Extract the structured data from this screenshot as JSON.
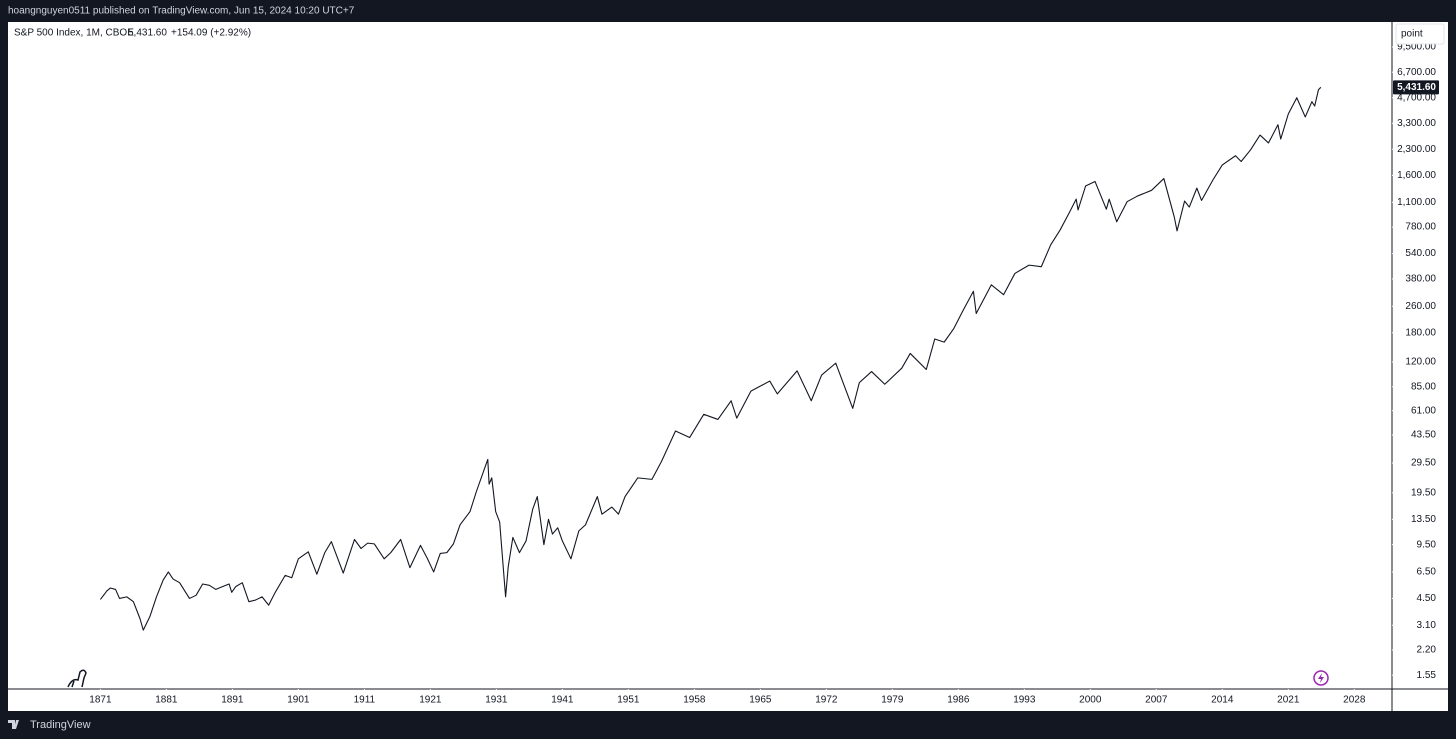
{
  "header": {
    "byline": "hoangnguyen0511 published on TradingView.com, Jun 15, 2024 10:20 UTC+7"
  },
  "footer": {
    "brand": "TradingView"
  },
  "toolbar": {
    "scale_button": "point"
  },
  "chart_data": {
    "type": "line",
    "log_scale": true,
    "grid": false,
    "price_label": {
      "value": 5431.6,
      "label": "5,431.60"
    },
    "change": "+154.09 (+2.92%)",
    "xlim": [
      1857,
      2032
    ],
    "xticks": [
      1871,
      1881,
      1891,
      1901,
      1911,
      1921,
      1931,
      1941,
      1951,
      1958,
      1965,
      1972,
      1979,
      1986,
      1993,
      2000,
      2007,
      2014,
      2021,
      2028
    ],
    "ylim": [
      1.28,
      13450
    ],
    "yticks": [
      1.55,
      {
        "value": 2.2,
        "label": "2.20"
      },
      {
        "value": 3.1,
        "label": "3.10"
      },
      {
        "value": 4.5,
        "label": "4.50"
      },
      {
        "value": 6.5,
        "label": "6.50"
      },
      {
        "value": 9.5,
        "label": "9.50"
      },
      {
        "value": 13.5,
        "label": "13.50"
      },
      {
        "value": 19.5,
        "label": "19.50"
      },
      {
        "value": 29.5,
        "label": "29.50"
      },
      {
        "value": 43.5,
        "label": "43.50"
      },
      {
        "value": 61,
        "label": "61.00"
      },
      {
        "value": 85,
        "label": "85.00"
      },
      {
        "value": 120,
        "label": "120.00"
      },
      {
        "value": 180,
        "label": "180.00"
      },
      {
        "value": 260,
        "label": "260.00"
      },
      {
        "value": 380,
        "label": "380.00"
      },
      {
        "value": 540,
        "label": "540.00"
      },
      {
        "value": 780,
        "label": "780.00"
      },
      {
        "value": 1100,
        "label": "1,100.00"
      },
      {
        "value": 1600,
        "label": "1,600.00"
      },
      {
        "value": 2300,
        "label": "2,300.00"
      },
      {
        "value": 3300,
        "label": "3,300.00"
      },
      {
        "value": 4700,
        "label": "4,700.00"
      },
      {
        "value": 6700,
        "label": "6,700.00"
      },
      {
        "value": 9500,
        "label": "9,500.00"
      }
    ],
    "series": [
      {
        "name": "S&P 500 Index, 1M, CBOE",
        "color": "#131722",
        "x": [
          1871.0,
          1872.0,
          1872.5,
          1873.3,
          1873.9,
          1875.0,
          1876.0,
          1877.0,
          1877.5,
          1878.5,
          1879.5,
          1880.5,
          1881.3,
          1882.0,
          1883.0,
          1884.5,
          1885.5,
          1886.5,
          1887.5,
          1888.5,
          1889.5,
          1890.5,
          1890.9,
          1891.5,
          1892.5,
          1893.5,
          1894.5,
          1895.5,
          1896.5,
          1897.5,
          1899.0,
          1900.0,
          1901.0,
          1902.5,
          1903.8,
          1905.0,
          1906.0,
          1907.8,
          1909.5,
          1910.5,
          1911.5,
          1912.5,
          1914.0,
          1915.0,
          1916.5,
          1917.9,
          1919.5,
          1920.5,
          1921.5,
          1922.5,
          1923.5,
          1924.5,
          1925.5,
          1927.0,
          1928.0,
          1929.7,
          1929.9,
          1930.3,
          1930.9,
          1931.5,
          1932.4,
          1932.8,
          1933.5,
          1934.5,
          1935.5,
          1936.5,
          1937.2,
          1938.2,
          1938.9,
          1939.5,
          1940.3,
          1941.0,
          1942.3,
          1943.5,
          1944.5,
          1946.3,
          1947.0,
          1948.5,
          1949.5,
          1950.5,
          1952.0,
          1953.5,
          1954.5,
          1956.0,
          1957.5,
          1959.0,
          1960.5,
          1961.9,
          1962.5,
          1964.0,
          1966.0,
          1966.8,
          1968.9,
          1970.4,
          1971.5,
          1973.0,
          1974.8,
          1975.5,
          1976.8,
          1978.2,
          1980.0,
          1980.9,
          1982.6,
          1983.5,
          1984.5,
          1985.5,
          1986.5,
          1987.6,
          1987.9,
          1989.5,
          1990.8,
          1992.0,
          1993.5,
          1994.8,
          1995.8,
          1996.8,
          1997.8,
          1998.5,
          1998.7,
          1999.5,
          2000.5,
          2001.7,
          2002.0,
          2002.8,
          2003.9,
          2005.0,
          2006.5,
          2007.8,
          2008.9,
          2009.2,
          2010.0,
          2010.5,
          2011.3,
          2011.8,
          2013.0,
          2014.0,
          2015.4,
          2016.0,
          2017.0,
          2018.0,
          2018.9,
          2019.9,
          2020.2,
          2021.0,
          2021.9,
          2022.8,
          2023.5,
          2023.8,
          2024.2,
          2024.45
        ],
        "values": [
          4.44,
          5.0,
          5.2,
          5.1,
          4.5,
          4.6,
          4.3,
          3.4,
          2.9,
          3.5,
          4.6,
          5.8,
          6.5,
          5.9,
          5.6,
          4.5,
          4.7,
          5.5,
          5.4,
          5.1,
          5.3,
          5.5,
          4.9,
          5.3,
          5.6,
          4.3,
          4.4,
          4.6,
          4.1,
          4.9,
          6.2,
          6.0,
          7.8,
          8.6,
          6.3,
          8.5,
          9.9,
          6.4,
          10.2,
          9.0,
          9.7,
          9.6,
          7.8,
          8.5,
          10.2,
          6.9,
          9.4,
          7.9,
          6.5,
          8.4,
          8.5,
          9.6,
          12.5,
          15.0,
          20.0,
          31.0,
          22.0,
          24.0,
          15.0,
          13.0,
          4.6,
          7.0,
          10.5,
          8.5,
          10.0,
          15.5,
          18.5,
          9.5,
          13.5,
          11.0,
          12.0,
          10.0,
          7.8,
          11.5,
          12.5,
          18.5,
          14.5,
          16.0,
          14.5,
          18.5,
          24.0,
          23.5,
          30.0,
          46.0,
          42.0,
          58.0,
          54.0,
          70.0,
          55.0,
          80.0,
          92.0,
          77.0,
          106.0,
          70.0,
          100.0,
          118.0,
          63.0,
          90.0,
          105.0,
          88.0,
          110.0,
          135.0,
          108.0,
          165.0,
          158.0,
          190.0,
          245.0,
          320.0,
          235.0,
          350.0,
          305.0,
          410.0,
          460.0,
          450.0,
          610.0,
          750.0,
          960.0,
          1150.0,
          990.0,
          1380.0,
          1470.0,
          1000.0,
          1150.0,
          840.0,
          1110.0,
          1200.0,
          1300.0,
          1530.0,
          900.0,
          740.0,
          1120.0,
          1030.0,
          1340.0,
          1130.0,
          1500.0,
          1850.0,
          2100.0,
          1940.0,
          2280.0,
          2800.0,
          2510.0,
          3230.0,
          2650.0,
          3750.0,
          4700.0,
          3600.0,
          4450.0,
          4190.0,
          5250.0,
          5431.6
        ]
      }
    ]
  }
}
